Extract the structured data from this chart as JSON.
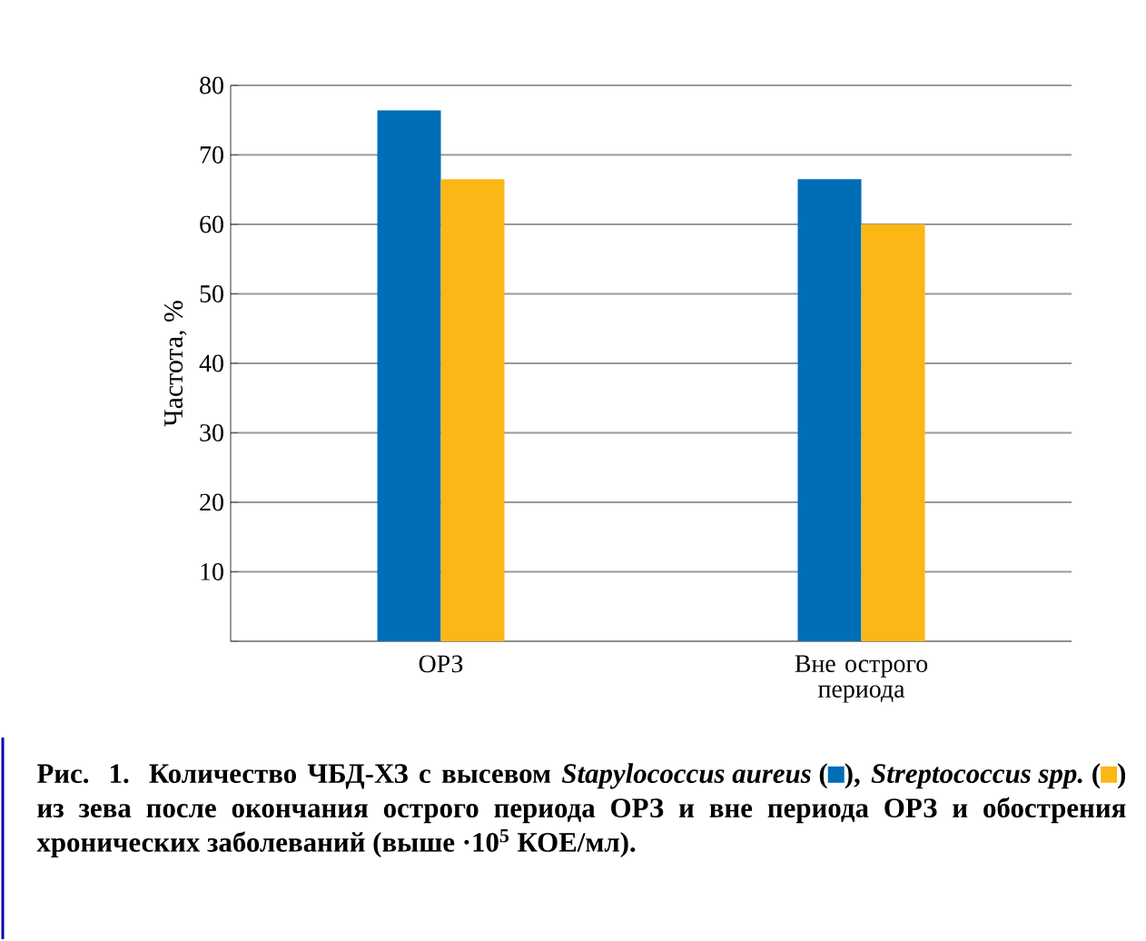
{
  "chart_data": {
    "type": "bar",
    "categories": [
      "ОРЗ",
      "Вне острого периода"
    ],
    "series": [
      {
        "name": "Stapylococcus aureus",
        "color": "#006db7",
        "values": [
          76.4,
          66.5
        ]
      },
      {
        "name": "Streptococcus spp.",
        "color": "#fbb716",
        "values": [
          66.5,
          60
        ]
      }
    ],
    "ylim": [
      0,
      80
    ],
    "yticks": [
      {
        "value": 0,
        "label": null
      },
      10,
      20,
      30,
      40,
      50,
      60,
      70,
      80
    ],
    "ylabel": "Частота, %",
    "grid": "y",
    "legend": "bottom",
    "annotations": [
      "Рис. 1. Количество ЧБД-ХЗ с высевом",
      "(",
      "),",
      "(",
      ")",
      "из зева после окончания острого периода ОРЗ и вне периода ОРЗ и обострения хронических заболеваний (выше ·10$^{5}$ КОЕ/мл)."
    ]
  }
}
